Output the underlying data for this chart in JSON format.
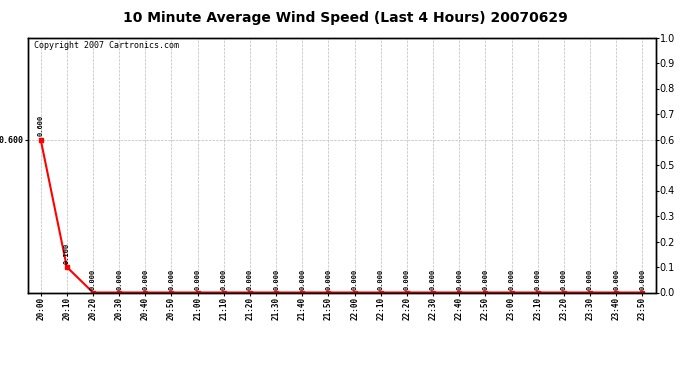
{
  "title": "10 Minute Average Wind Speed (Last 4 Hours) 20070629",
  "copyright": "Copyright 2007 Cartronics.com",
  "line_color": "red",
  "background_color": "white",
  "grid_color": "#bbbbbb",
  "x_labels": [
    "20:00",
    "20:10",
    "20:20",
    "20:30",
    "20:40",
    "20:50",
    "21:00",
    "21:10",
    "21:20",
    "21:30",
    "21:40",
    "21:50",
    "22:00",
    "22:10",
    "22:20",
    "22:30",
    "22:40",
    "22:50",
    "23:00",
    "23:10",
    "23:20",
    "23:30",
    "23:40",
    "23:50"
  ],
  "y_values": [
    0.6,
    0.1,
    0.0,
    0.0,
    0.0,
    0.0,
    0.0,
    0.0,
    0.0,
    0.0,
    0.0,
    0.0,
    0.0,
    0.0,
    0.0,
    0.0,
    0.0,
    0.0,
    0.0,
    0.0,
    0.0,
    0.0,
    0.0,
    0.0
  ],
  "ylim": [
    0.0,
    1.0
  ],
  "yticks_right": [
    0.0,
    0.1,
    0.2,
    0.3,
    0.4,
    0.5,
    0.6,
    0.7,
    0.8,
    0.9,
    1.0
  ],
  "marker": "s",
  "marker_size": 3,
  "line_width": 1.5,
  "fig_width": 6.9,
  "fig_height": 3.75,
  "dpi": 100
}
